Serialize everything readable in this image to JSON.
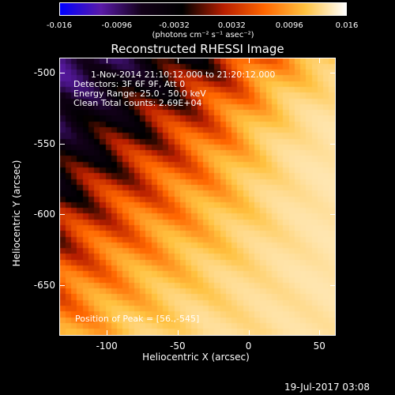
{
  "colorbar": {
    "ticks": [
      "-0.016",
      "-0.0096",
      "-0.0032",
      "0.0032",
      "0.0096",
      "0.016"
    ],
    "unit_label": "(photons cm⁻² s⁻¹ asec⁻²)",
    "colors": [
      "#0000ff",
      "#5a1aa8",
      "#120018",
      "#000000",
      "#b81e00",
      "#ff6600",
      "#ffc240",
      "#ffffff"
    ]
  },
  "image": {
    "title": "Reconstructed RHESSI Image",
    "info_lines": [
      "1-Nov-2014 21:10:12.000 to 21:20:12.000",
      "Detectors: 3F 6F 9F, Att 0",
      "Energy Range: 25.0 - 50.0 keV",
      "Clean    Total counts: 2.69E+04"
    ],
    "peak_label": "Position of Peak = [56.,-545]",
    "timestamp": "19-Jul-2017 03:08"
  },
  "chart_data": {
    "type": "heatmap",
    "xlabel": "Heliocentric X (arcsec)",
    "ylabel": "Heliocentric Y (arcsec)",
    "xlim": [
      -133,
      61
    ],
    "ylim": [
      -685,
      -490
    ],
    "xticks": [
      "-100",
      "-50",
      "0",
      "50"
    ],
    "xtick_values": [
      -100,
      -50,
      0,
      50
    ],
    "yticks": [
      "-500",
      "-550",
      "-600",
      "-650"
    ],
    "ytick_values": [
      -500,
      -550,
      -600,
      -650
    ],
    "zlim": [
      -0.016,
      0.016
    ],
    "peak": [
      56,
      -545
    ],
    "grid": false
  }
}
